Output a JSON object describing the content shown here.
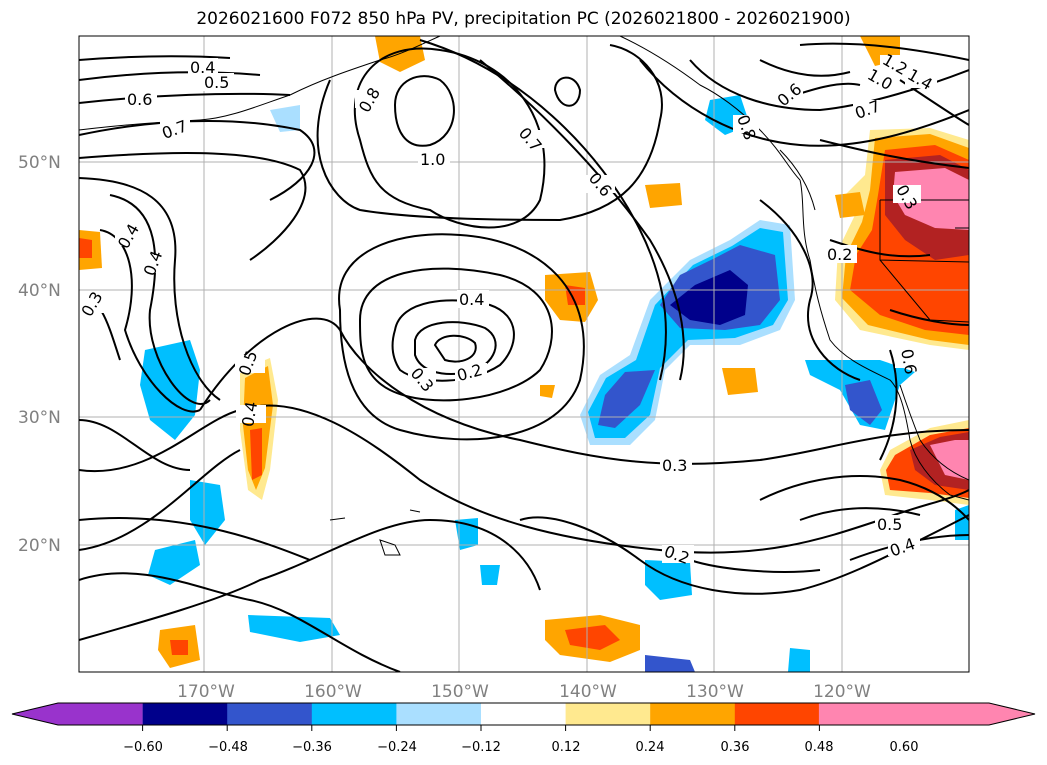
{
  "title": "2026021600 F072 850 hPa PV, precipitation PC (2026021800 - 2026021900)",
  "map": {
    "lon_labels": [
      "170°W",
      "160°W",
      "150°W",
      "140°W",
      "130°W",
      "120°W"
    ],
    "lat_labels": [
      "50°N",
      "40°N",
      "30°N",
      "20°N"
    ],
    "contour_labels": [
      "0.4",
      "0.5",
      "0.6",
      "0.7",
      "0.8",
      "1.0",
      "0.7",
      "0.6",
      "0.6",
      "0.8",
      "1.0",
      "1.2",
      "1.4",
      "0.7",
      "0.3",
      "0.2",
      "0.4",
      "0.4",
      "0.3",
      "0.5",
      "0.4",
      "0.4",
      "0.3",
      "0.2",
      "0.3",
      "0.2",
      "0.5",
      "0.4",
      "0.6"
    ]
  },
  "colorbar": {
    "tick_labels": [
      "−0.60",
      "−0.48",
      "−0.36",
      "−0.24",
      "−0.12",
      "0.12",
      "0.24",
      "0.36",
      "0.48",
      "0.60"
    ],
    "colors": [
      "#9933cc",
      "#00008b",
      "#3355cc",
      "#00bfff",
      "#aadfff",
      "#ffffff",
      "#ffe98f",
      "#ffa500",
      "#ff4500",
      "#b22222",
      "#ff85b0"
    ]
  },
  "shading_colors": {
    "neg_light": "#aadfff",
    "neg_mid": "#00bfff",
    "neg_dark": "#3355cc",
    "neg_darkest": "#00008b",
    "pos_light": "#ffe98f",
    "pos_mid": "#ffa500",
    "pos_dark": "#ff4500",
    "pos_darker": "#b22222",
    "pos_darkest": "#ff85b0"
  }
}
